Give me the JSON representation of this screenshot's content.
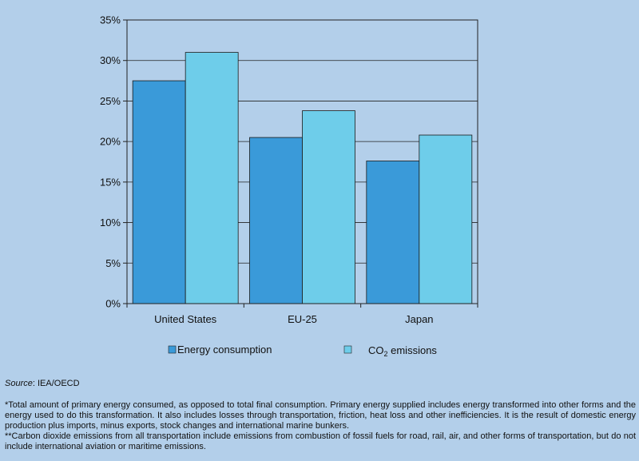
{
  "chart_data": {
    "type": "bar",
    "categories": [
      "United States",
      "EU-25",
      "Japan"
    ],
    "series": [
      {
        "name": "Energy consumption",
        "values": [
          27.5,
          20.5,
          17.6
        ],
        "color": "#3a9ad9"
      },
      {
        "name": "CO2 emissions",
        "values": [
          31.0,
          23.8,
          20.8
        ],
        "color": "#6ecdea"
      }
    ],
    "ylim": [
      0,
      35
    ],
    "yticks": [
      "0%",
      "5%",
      "10%",
      "15%",
      "20%",
      "25%",
      "30%",
      "35%"
    ],
    "grid": true,
    "legend_position": "bottom",
    "legend": {
      "energy_label": "Energy consumption",
      "co2_prefix": "CO",
      "co2_subscript": "2",
      "co2_suffix": " emissions"
    }
  },
  "source": {
    "label": "Source",
    "text": ": IEA/OECD"
  },
  "footnotes": [
    "*Total amount of primary energy consumed, as opposed to total final consumption. Primary energy supplied includes energy transformed into other forms and the energy used to do this transformation. It also includes losses through transportation, friction, heat loss and other inefficiencies. It is the result of domestic energy production plus imports, minus exports, stock changes and international marine bunkers.",
    "**Carbon dioxide emissions from all transportation include emissions from combustion of fossil fuels for road, rail, air, and other forms of transportation, but do not include international aviation or maritime emissions."
  ]
}
